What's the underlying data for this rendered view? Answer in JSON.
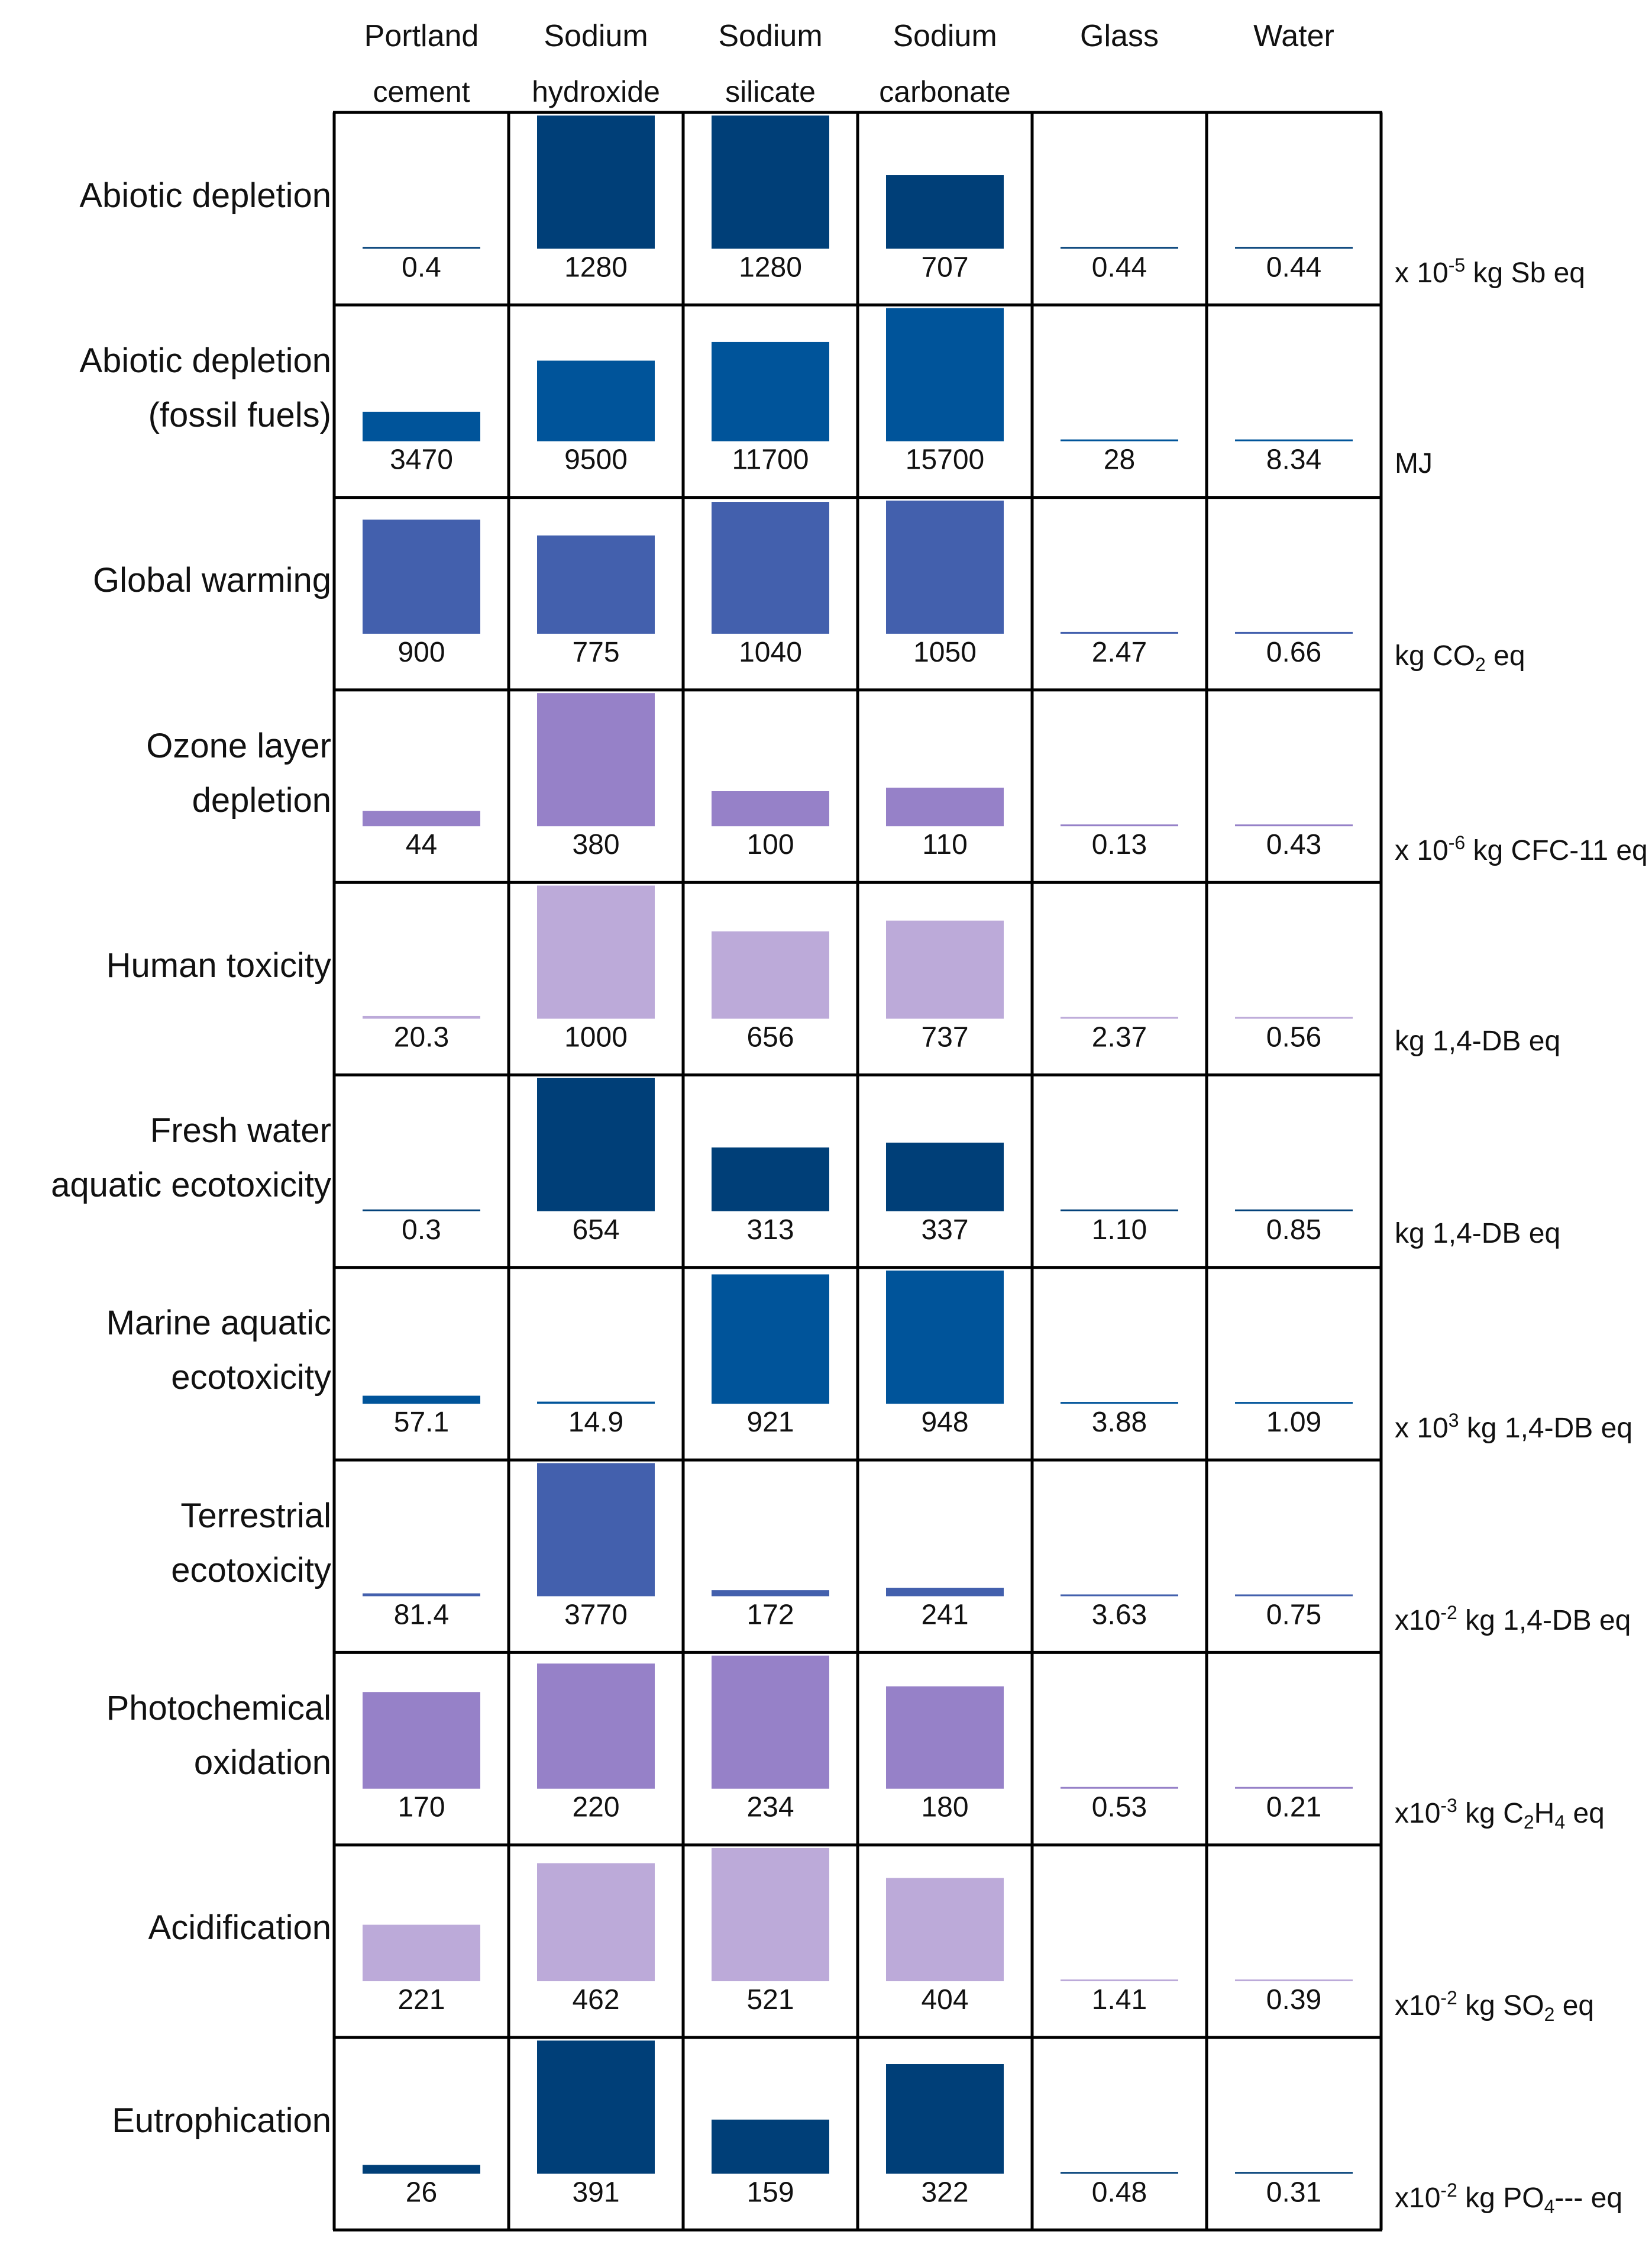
{
  "chart_data": {
    "type": "bar",
    "categories": [
      "Portland cement",
      "Sodium hydroxide",
      "Sodium silicate",
      "Sodium carbonate",
      "Glass",
      "Water"
    ],
    "columns": [
      {
        "line1": "Portland",
        "line2": "cement"
      },
      {
        "line1": "Sodium",
        "line2": "hydroxide"
      },
      {
        "line1": "Sodium",
        "line2": "silicate"
      },
      {
        "line1": "Sodium",
        "line2": "carbonate"
      },
      {
        "line1": "Glass",
        "line2": ""
      },
      {
        "line1": "Water",
        "line2": ""
      }
    ],
    "rows": [
      {
        "label_lines": [
          "Abiotic depletion"
        ],
        "unit": {
          "pre": "x 10",
          "sup": "-5",
          "post": " kg Sb eq"
        },
        "color": "#003f78",
        "values": [
          0.4,
          1280,
          1280,
          707,
          0.44,
          0.44
        ],
        "value_labels": [
          "0.4",
          "1280",
          "1280",
          "707",
          "0.44",
          "0.44"
        ]
      },
      {
        "label_lines": [
          "Abiotic depletion",
          "(fossil fuels)"
        ],
        "unit": {
          "pre": "MJ"
        },
        "color": "#00549a",
        "values": [
          3470,
          9500,
          11700,
          15700,
          28,
          8.34
        ],
        "value_labels": [
          "3470",
          "9500",
          "11700",
          "15700",
          "28",
          "8.34"
        ]
      },
      {
        "label_lines": [
          "Global warming"
        ],
        "unit": {
          "pre": "kg CO",
          "sub": "2",
          "post": " eq"
        },
        "color": "#4360ad",
        "values": [
          900,
          775,
          1040,
          1050,
          2.47,
          0.66
        ],
        "value_labels": [
          "900",
          "775",
          "1040",
          "1050",
          "2.47",
          "0.66"
        ]
      },
      {
        "label_lines": [
          "Ozone layer",
          "depletion"
        ],
        "unit": {
          "pre": "x 10",
          "sup": "-6",
          "post": " kg CFC-11 eq"
        },
        "color": "#9681c8",
        "values": [
          44,
          380,
          100,
          110,
          0.13,
          0.43
        ],
        "value_labels": [
          "44",
          "380",
          "100",
          "110",
          "0.13",
          "0.43"
        ]
      },
      {
        "label_lines": [
          "Human toxicity"
        ],
        "unit": {
          "pre": "kg 1,4-DB eq"
        },
        "color": "#bcaad9",
        "values": [
          20.3,
          1000,
          656,
          737,
          2.37,
          0.56
        ],
        "value_labels": [
          "20.3",
          "1000",
          "656",
          "737",
          "2.37",
          "0.56"
        ]
      },
      {
        "label_lines": [
          "Fresh water",
          "aquatic ecotoxicity"
        ],
        "unit": {
          "pre": "kg 1,4-DB eq"
        },
        "color": "#003f78",
        "values": [
          0.3,
          654,
          313,
          337,
          1.1,
          0.85
        ],
        "value_labels": [
          "0.3",
          "654",
          "313",
          "337",
          "1.10",
          "0.85"
        ]
      },
      {
        "label_lines": [
          "Marine aquatic",
          "ecotoxicity"
        ],
        "unit": {
          "pre": "x 10",
          "sup": "3",
          "post": " kg 1,4-DB eq"
        },
        "color": "#00549a",
        "values": [
          57.1,
          14.9,
          921,
          948,
          3.88,
          1.09
        ],
        "value_labels": [
          "57.1",
          "14.9",
          "921",
          "948",
          "3.88",
          "1.09"
        ]
      },
      {
        "label_lines": [
          "Terrestrial",
          "ecotoxicity"
        ],
        "unit": {
          "pre": "x10",
          "sup": "-2",
          "post": " kg 1,4-DB eq"
        },
        "color": "#4360ad",
        "values": [
          81.4,
          3770,
          172,
          241,
          3.63,
          0.75
        ],
        "value_labels": [
          "81.4",
          "3770",
          "172",
          "241",
          "3.63",
          "0.75"
        ]
      },
      {
        "label_lines": [
          "Photochemical",
          "oxidation"
        ],
        "unit": {
          "pre": "x10",
          "sup": "-3",
          "post": " kg C",
          "sub": "2",
          "post2": "H",
          "sub2": "4",
          "post3": " eq"
        },
        "color": "#9681c8",
        "values": [
          170,
          220,
          234,
          180,
          0.53,
          0.21
        ],
        "value_labels": [
          "170",
          "220",
          "234",
          "180",
          "0.53",
          "0.21"
        ]
      },
      {
        "label_lines": [
          "Acidification"
        ],
        "unit": {
          "pre": "x10",
          "sup": "-2",
          "post": " kg SO",
          "sub": "2",
          "post2": " eq"
        },
        "color": "#bcaad9",
        "values": [
          221,
          462,
          521,
          404,
          1.41,
          0.39
        ],
        "value_labels": [
          "221",
          "462",
          "521",
          "404",
          "1.41",
          "0.39"
        ]
      },
      {
        "label_lines": [
          "Eutrophication"
        ],
        "unit": {
          "pre": "x10",
          "sup": "-2",
          "post": " kg PO",
          "sub": "4",
          "post2": "--- eq"
        },
        "color": "#003f78",
        "values": [
          26,
          391,
          159,
          322,
          0.48,
          0.31
        ],
        "value_labels": [
          "26",
          "391",
          "159",
          "322",
          "0.48",
          "0.31"
        ]
      }
    ]
  }
}
